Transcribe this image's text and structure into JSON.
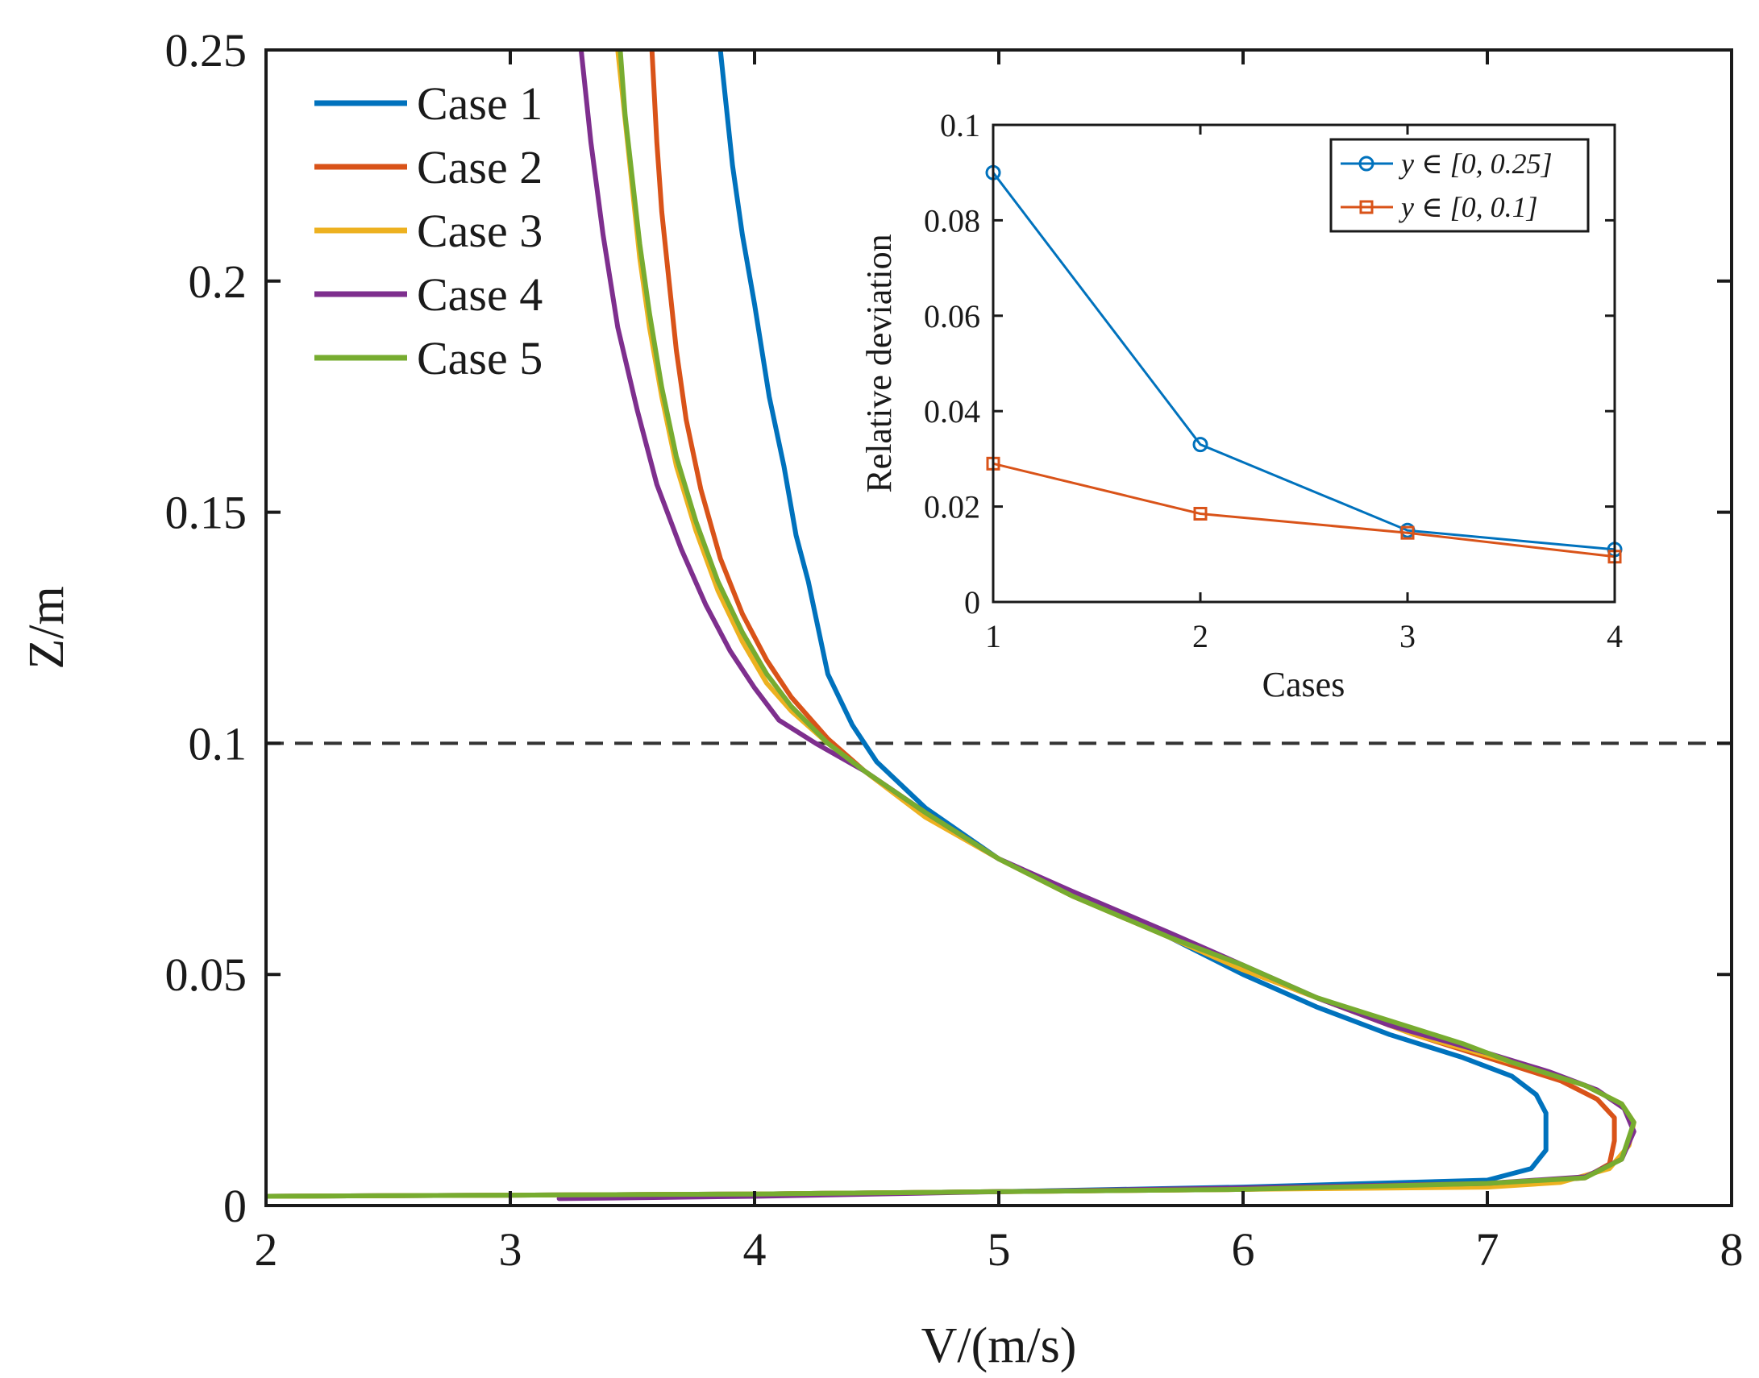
{
  "chart_data": [
    {
      "type": "line",
      "xlabel": "V/(m/s)",
      "ylabel": "Z/m",
      "xlim": [
        2,
        8
      ],
      "ylim": [
        0,
        0.25
      ],
      "xticks": [
        2,
        3,
        4,
        5,
        6,
        7,
        8
      ],
      "xtick_labels": [
        "2",
        "3",
        "4",
        "5",
        "6",
        "7",
        "8"
      ],
      "yticks": [
        0,
        0.05,
        0.1,
        0.15,
        0.2,
        0.25
      ],
      "ytick_labels": [
        "0",
        "0.05",
        "0.1",
        "0.15",
        "0.2",
        "0.25"
      ],
      "grid": false,
      "legend_position": "top-left",
      "reference_line": {
        "orientation": "horizontal",
        "y": 0.1,
        "style": "dashed",
        "color": "#333333"
      },
      "series": [
        {
          "name": "Case 1",
          "color": "#0072BD",
          "points": [
            [
              2.0,
              0.002
            ],
            [
              4.0,
              0.0025
            ],
            [
              5.0,
              0.003
            ],
            [
              6.0,
              0.004
            ],
            [
              7.0,
              0.0055
            ],
            [
              7.18,
              0.008
            ],
            [
              7.24,
              0.012
            ],
            [
              7.24,
              0.02
            ],
            [
              7.2,
              0.024
            ],
            [
              7.1,
              0.028
            ],
            [
              6.9,
              0.032
            ],
            [
              6.6,
              0.037
            ],
            [
              6.3,
              0.043
            ],
            [
              6.0,
              0.05
            ],
            [
              5.7,
              0.058
            ],
            [
              5.4,
              0.065
            ],
            [
              5.0,
              0.075
            ],
            [
              4.7,
              0.086
            ],
            [
              4.5,
              0.096
            ],
            [
              4.4,
              0.104
            ],
            [
              4.3,
              0.115
            ],
            [
              4.26,
              0.125
            ],
            [
              4.22,
              0.135
            ],
            [
              4.17,
              0.145
            ],
            [
              4.12,
              0.16
            ],
            [
              4.06,
              0.175
            ],
            [
              4.0,
              0.195
            ],
            [
              3.95,
              0.21
            ],
            [
              3.91,
              0.225
            ],
            [
              3.88,
              0.24
            ],
            [
              3.86,
              0.25
            ]
          ]
        },
        {
          "name": "Case 2",
          "color": "#D95319",
          "points": [
            [
              2.0,
              0.002
            ],
            [
              4.0,
              0.0025
            ],
            [
              5.0,
              0.003
            ],
            [
              6.0,
              0.0035
            ],
            [
              7.0,
              0.0045
            ],
            [
              7.4,
              0.006
            ],
            [
              7.5,
              0.009
            ],
            [
              7.52,
              0.014
            ],
            [
              7.52,
              0.019
            ],
            [
              7.45,
              0.023
            ],
            [
              7.3,
              0.027
            ],
            [
              7.0,
              0.032
            ],
            [
              6.7,
              0.037
            ],
            [
              6.35,
              0.044
            ],
            [
              6.0,
              0.051
            ],
            [
              5.7,
              0.058
            ],
            [
              5.3,
              0.067
            ],
            [
              5.0,
              0.075
            ],
            [
              4.7,
              0.085
            ],
            [
              4.45,
              0.094
            ],
            [
              4.3,
              0.101
            ],
            [
              4.15,
              0.11
            ],
            [
              4.05,
              0.118
            ],
            [
              3.95,
              0.128
            ],
            [
              3.86,
              0.14
            ],
            [
              3.78,
              0.155
            ],
            [
              3.72,
              0.17
            ],
            [
              3.68,
              0.185
            ],
            [
              3.65,
              0.2
            ],
            [
              3.62,
              0.215
            ],
            [
              3.6,
              0.23
            ],
            [
              3.58,
              0.25
            ]
          ]
        },
        {
          "name": "Case 3",
          "color": "#EDB120",
          "points": [
            [
              2.0,
              0.002
            ],
            [
              4.0,
              0.0025
            ],
            [
              5.0,
              0.003
            ],
            [
              6.0,
              0.0035
            ],
            [
              7.0,
              0.004
            ],
            [
              7.3,
              0.005
            ],
            [
              7.5,
              0.008
            ],
            [
              7.58,
              0.013
            ],
            [
              7.6,
              0.018
            ],
            [
              7.55,
              0.022
            ],
            [
              7.4,
              0.026
            ],
            [
              7.1,
              0.031
            ],
            [
              6.7,
              0.037
            ],
            [
              6.4,
              0.043
            ],
            [
              6.0,
              0.051
            ],
            [
              5.7,
              0.058
            ],
            [
              5.3,
              0.067
            ],
            [
              5.0,
              0.075
            ],
            [
              4.7,
              0.084
            ],
            [
              4.45,
              0.094
            ],
            [
              4.3,
              0.1
            ],
            [
              4.15,
              0.107
            ],
            [
              4.05,
              0.113
            ],
            [
              3.95,
              0.122
            ],
            [
              3.85,
              0.133
            ],
            [
              3.76,
              0.146
            ],
            [
              3.68,
              0.16
            ],
            [
              3.62,
              0.175
            ],
            [
              3.57,
              0.19
            ],
            [
              3.53,
              0.205
            ],
            [
              3.5,
              0.22
            ],
            [
              3.47,
              0.235
            ],
            [
              3.44,
              0.25
            ]
          ]
        },
        {
          "name": "Case 4",
          "color": "#7E2F8E",
          "points": [
            [
              3.2,
              0.0015
            ],
            [
              4.0,
              0.002
            ],
            [
              5.0,
              0.003
            ],
            [
              6.0,
              0.0038
            ],
            [
              7.0,
              0.0048
            ],
            [
              7.4,
              0.0062
            ],
            [
              7.55,
              0.01
            ],
            [
              7.6,
              0.016
            ],
            [
              7.56,
              0.021
            ],
            [
              7.45,
              0.025
            ],
            [
              7.25,
              0.029
            ],
            [
              7.0,
              0.033
            ],
            [
              6.6,
              0.039
            ],
            [
              6.3,
              0.045
            ],
            [
              6.0,
              0.052
            ],
            [
              5.7,
              0.059
            ],
            [
              5.3,
              0.068
            ],
            [
              5.0,
              0.075
            ],
            [
              4.7,
              0.085
            ],
            [
              4.45,
              0.094
            ],
            [
              4.25,
              0.1
            ],
            [
              4.1,
              0.105
            ],
            [
              4.0,
              0.112
            ],
            [
              3.9,
              0.12
            ],
            [
              3.8,
              0.13
            ],
            [
              3.7,
              0.142
            ],
            [
              3.6,
              0.156
            ],
            [
              3.52,
              0.172
            ],
            [
              3.44,
              0.19
            ],
            [
              3.38,
              0.21
            ],
            [
              3.33,
              0.23
            ],
            [
              3.29,
              0.25
            ]
          ]
        },
        {
          "name": "Case 5",
          "color": "#77AC30",
          "points": [
            [
              2.0,
              0.002
            ],
            [
              4.0,
              0.0025
            ],
            [
              5.0,
              0.003
            ],
            [
              6.0,
              0.0035
            ],
            [
              7.0,
              0.0048
            ],
            [
              7.4,
              0.006
            ],
            [
              7.55,
              0.01
            ],
            [
              7.6,
              0.018
            ],
            [
              7.55,
              0.022
            ],
            [
              7.4,
              0.026
            ],
            [
              7.1,
              0.031
            ],
            [
              6.9,
              0.035
            ],
            [
              6.6,
              0.04
            ],
            [
              6.3,
              0.045
            ],
            [
              6.0,
              0.052
            ],
            [
              5.7,
              0.058
            ],
            [
              5.3,
              0.067
            ],
            [
              5.0,
              0.075
            ],
            [
              4.7,
              0.085
            ],
            [
              4.45,
              0.094
            ],
            [
              4.3,
              0.1
            ],
            [
              4.15,
              0.108
            ],
            [
              4.05,
              0.115
            ],
            [
              3.95,
              0.124
            ],
            [
              3.85,
              0.135
            ],
            [
              3.76,
              0.148
            ],
            [
              3.68,
              0.162
            ],
            [
              3.62,
              0.177
            ],
            [
              3.57,
              0.193
            ],
            [
              3.53,
              0.208
            ],
            [
              3.5,
              0.222
            ],
            [
              3.47,
              0.236
            ],
            [
              3.45,
              0.25
            ]
          ]
        }
      ]
    },
    {
      "type": "line",
      "role": "inset",
      "xlabel": "Cases",
      "ylabel": "Relative deviation",
      "xlim": [
        1,
        4
      ],
      "ylim": [
        0,
        0.1
      ],
      "xticks": [
        1,
        2,
        3,
        4
      ],
      "xtick_labels": [
        "1",
        "2",
        "3",
        "4"
      ],
      "yticks": [
        0,
        0.02,
        0.04,
        0.06,
        0.08,
        0.1
      ],
      "ytick_labels": [
        "0",
        "0.02",
        "0.04",
        "0.06",
        "0.08",
        "0.1"
      ],
      "grid": false,
      "legend_position": "top-right",
      "series": [
        {
          "name": "y ∈ [0, 0.25]",
          "color": "#0072BD",
          "marker": "circle",
          "x": [
            1,
            2,
            3,
            4
          ],
          "values": [
            0.09,
            0.033,
            0.015,
            0.011
          ]
        },
        {
          "name": "y ∈ [0, 0.1]",
          "color": "#D95319",
          "marker": "square",
          "x": [
            1,
            2,
            3,
            4
          ],
          "values": [
            0.029,
            0.0185,
            0.0145,
            0.0095
          ]
        }
      ]
    }
  ]
}
